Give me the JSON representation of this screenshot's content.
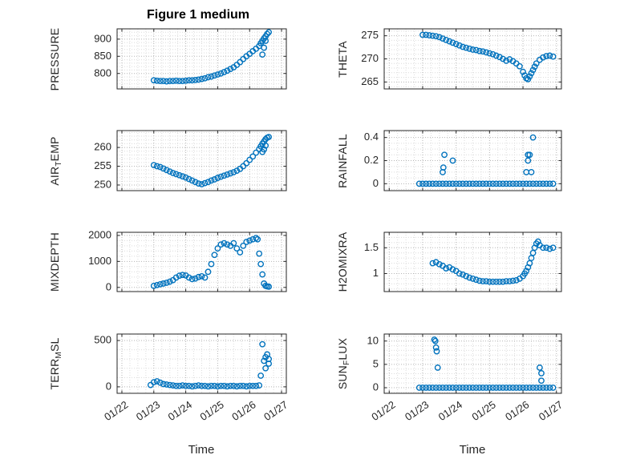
{
  "figure": {
    "title": "Figure 1 medium",
    "xlabel": "Time",
    "accent_color": "#0072BD"
  },
  "xaxis": {
    "tick_values": [
      22,
      23,
      24,
      25,
      26,
      27
    ],
    "tick_labels": [
      "01/22",
      "01/23",
      "01/24",
      "01/25",
      "01/26",
      "01/27"
    ],
    "minor_step": 0.25,
    "xlim": [
      21.85,
      27.15
    ]
  },
  "chart_data": [
    {
      "name": "pressure",
      "type": "scatter",
      "row": 0,
      "col": 0,
      "ylabel_parts": [
        {
          "t": "PRESSURE"
        }
      ],
      "ytick_values": [
        800,
        850,
        900
      ],
      "ytick_labels": [
        "800",
        "850",
        "900"
      ],
      "yminor_step": 10,
      "ylim": [
        755,
        930
      ],
      "x": [
        23.0,
        23.1,
        23.2,
        23.3,
        23.4,
        23.5,
        23.6,
        23.7,
        23.8,
        23.9,
        24.0,
        24.1,
        24.2,
        24.3,
        24.4,
        24.5,
        24.6,
        24.7,
        24.8,
        24.9,
        25.0,
        25.1,
        25.2,
        25.3,
        25.4,
        25.5,
        25.6,
        25.7,
        25.8,
        25.9,
        26.0,
        26.1,
        26.2,
        26.3,
        26.35,
        26.4,
        26.4,
        26.45,
        26.45,
        26.5,
        26.5,
        26.55,
        26.6
      ],
      "y": [
        780,
        779,
        778,
        778,
        777,
        778,
        778,
        779,
        778,
        778,
        779,
        780,
        780,
        781,
        782,
        784,
        786,
        789,
        791,
        794,
        797,
        800,
        804,
        808,
        813,
        818,
        825,
        833,
        842,
        850,
        857,
        865,
        872,
        880,
        888,
        895,
        855,
        902,
        875,
        908,
        895,
        915,
        920
      ]
    },
    {
      "name": "theta",
      "type": "scatter",
      "row": 0,
      "col": 1,
      "ylabel_parts": [
        {
          "t": "THETA"
        }
      ],
      "ytick_values": [
        265,
        270,
        275
      ],
      "ytick_labels": [
        "265",
        "270",
        "275"
      ],
      "yminor_step": 1,
      "ylim": [
        263.5,
        276.5
      ],
      "x": [
        23.0,
        23.1,
        23.2,
        23.3,
        23.4,
        23.5,
        23.6,
        23.7,
        23.8,
        23.9,
        24.0,
        24.1,
        24.2,
        24.3,
        24.4,
        24.5,
        24.6,
        24.7,
        24.8,
        24.9,
        25.0,
        25.1,
        25.2,
        25.3,
        25.4,
        25.5,
        25.6,
        25.7,
        25.8,
        25.9,
        26.0,
        26.05,
        26.1,
        26.15,
        26.2,
        26.25,
        26.3,
        26.35,
        26.4,
        26.5,
        26.6,
        26.7,
        26.8,
        26.9
      ],
      "y": [
        275.2,
        275.2,
        275.1,
        275.0,
        274.9,
        274.7,
        274.4,
        274.1,
        273.8,
        273.5,
        273.2,
        272.9,
        272.6,
        272.4,
        272.2,
        272.0,
        271.9,
        271.7,
        271.6,
        271.4,
        271.2,
        271.0,
        270.7,
        270.4,
        270.0,
        269.6,
        269.9,
        269.5,
        269.0,
        268.4,
        267.2,
        266.4,
        265.8,
        265.6,
        266.2,
        266.9,
        267.6,
        268.3,
        269.0,
        269.8,
        270.3,
        270.6,
        270.7,
        270.5
      ]
    },
    {
      "name": "air_temp",
      "type": "scatter",
      "row": 1,
      "col": 0,
      "ylabel_parts": [
        {
          "t": "AIR"
        },
        {
          "t": "T",
          "sub": true
        },
        {
          "t": "EMP"
        }
      ],
      "ytick_values": [
        250,
        255,
        260
      ],
      "ytick_labels": [
        "250",
        "255",
        "260"
      ],
      "yminor_step": 1,
      "ylim": [
        248.5,
        264.5
      ],
      "x": [
        23.0,
        23.1,
        23.2,
        23.3,
        23.4,
        23.5,
        23.6,
        23.7,
        23.8,
        23.9,
        24.0,
        24.1,
        24.2,
        24.3,
        24.4,
        24.5,
        24.6,
        24.7,
        24.8,
        24.9,
        25.0,
        25.1,
        25.2,
        25.3,
        25.4,
        25.5,
        25.6,
        25.7,
        25.8,
        25.9,
        26.0,
        26.1,
        26.2,
        26.3,
        26.35,
        26.4,
        26.4,
        26.45,
        26.45,
        26.5,
        26.5,
        26.55,
        26.6
      ],
      "y": [
        255.3,
        255.0,
        254.8,
        254.4,
        254.0,
        253.6,
        253.2,
        252.9,
        252.6,
        252.3,
        252.0,
        251.6,
        251.2,
        250.8,
        250.4,
        250.2,
        250.5,
        250.8,
        251.2,
        251.5,
        251.9,
        252.2,
        252.5,
        252.8,
        253.1,
        253.4,
        253.8,
        254.3,
        255.0,
        255.8,
        256.7,
        257.6,
        258.6,
        259.6,
        260.3,
        261.0,
        258.8,
        261.6,
        259.5,
        262.2,
        260.5,
        262.6,
        262.8
      ]
    },
    {
      "name": "rainfall",
      "type": "scatter",
      "row": 1,
      "col": 1,
      "ylabel_parts": [
        {
          "t": "RAINFALL"
        }
      ],
      "ytick_values": [
        0,
        0.2,
        0.4
      ],
      "ytick_labels": [
        "0",
        "0.2",
        "0.4"
      ],
      "yminor_step": 0.05,
      "ylim": [
        -0.06,
        0.46
      ],
      "x": [
        22.9,
        23.0,
        23.1,
        23.2,
        23.3,
        23.4,
        23.5,
        23.6,
        23.7,
        23.8,
        23.9,
        24.0,
        24.1,
        24.2,
        24.3,
        24.4,
        24.5,
        24.6,
        24.7,
        24.8,
        24.9,
        25.0,
        25.1,
        25.2,
        25.3,
        25.4,
        25.5,
        25.6,
        25.7,
        25.8,
        25.9,
        26.0,
        26.1,
        26.2,
        26.3,
        26.4,
        26.5,
        26.6,
        26.7,
        26.8,
        26.9,
        23.6,
        23.62,
        23.65,
        23.9,
        26.1,
        26.15,
        26.15,
        26.2,
        26.25,
        26.3
      ],
      "y": [
        0,
        0,
        0,
        0,
        0,
        0,
        0,
        0,
        0,
        0,
        0,
        0,
        0,
        0,
        0,
        0,
        0,
        0,
        0,
        0,
        0,
        0,
        0,
        0,
        0,
        0,
        0,
        0,
        0,
        0,
        0,
        0,
        0,
        0,
        0,
        0,
        0,
        0,
        0,
        0,
        0,
        0.1,
        0.14,
        0.25,
        0.2,
        0.1,
        0.2,
        0.25,
        0.25,
        0.1,
        0.4
      ]
    },
    {
      "name": "mixdepth",
      "type": "scatter",
      "row": 2,
      "col": 0,
      "ylabel_parts": [
        {
          "t": "MIXDEPTH"
        }
      ],
      "ytick_values": [
        0,
        1000,
        2000
      ],
      "ytick_labels": [
        "0",
        "1000",
        "2000"
      ],
      "yminor_step": 200,
      "ylim": [
        -160,
        2120
      ],
      "x": [
        23.0,
        23.1,
        23.2,
        23.3,
        23.4,
        23.5,
        23.6,
        23.7,
        23.8,
        23.9,
        24.0,
        24.1,
        24.2,
        24.3,
        24.4,
        24.5,
        24.6,
        24.7,
        24.8,
        24.9,
        25.0,
        25.1,
        25.2,
        25.3,
        25.4,
        25.5,
        25.6,
        25.7,
        25.8,
        25.9,
        26.0,
        26.1,
        26.2,
        26.25,
        26.3,
        26.35,
        26.4,
        26.45,
        26.5,
        26.55,
        26.6
      ],
      "y": [
        60,
        90,
        120,
        150,
        180,
        220,
        280,
        380,
        450,
        480,
        460,
        380,
        320,
        340,
        400,
        430,
        380,
        600,
        900,
        1250,
        1500,
        1650,
        1700,
        1650,
        1600,
        1700,
        1500,
        1350,
        1600,
        1750,
        1800,
        1850,
        1900,
        1850,
        1300,
        900,
        500,
        150,
        60,
        40,
        30
      ]
    },
    {
      "name": "h2omixra",
      "type": "scatter",
      "row": 2,
      "col": 1,
      "ylabel_parts": [
        {
          "t": "H2OMIXRA"
        }
      ],
      "ytick_values": [
        1,
        1.5
      ],
      "ytick_labels": [
        "1",
        "1.5"
      ],
      "yminor_step": 0.1,
      "ylim": [
        0.65,
        1.8
      ],
      "x": [
        23.3,
        23.4,
        23.5,
        23.6,
        23.7,
        23.8,
        23.9,
        24.0,
        24.1,
        24.2,
        24.3,
        24.4,
        24.5,
        24.6,
        24.7,
        24.8,
        24.9,
        25.0,
        25.1,
        25.2,
        25.3,
        25.4,
        25.5,
        25.6,
        25.7,
        25.8,
        25.9,
        26.0,
        26.05,
        26.1,
        26.15,
        26.2,
        26.25,
        26.3,
        26.35,
        26.4,
        26.45,
        26.5,
        26.6,
        26.7,
        26.8,
        26.9
      ],
      "y": [
        1.2,
        1.22,
        1.18,
        1.15,
        1.1,
        1.12,
        1.08,
        1.05,
        1.0,
        0.98,
        0.95,
        0.92,
        0.9,
        0.88,
        0.86,
        0.85,
        0.85,
        0.84,
        0.84,
        0.84,
        0.84,
        0.84,
        0.85,
        0.85,
        0.86,
        0.87,
        0.9,
        0.95,
        1.0,
        1.05,
        1.12,
        1.2,
        1.3,
        1.4,
        1.5,
        1.58,
        1.62,
        1.55,
        1.5,
        1.5,
        1.48,
        1.5
      ]
    },
    {
      "name": "terr_msl",
      "type": "scatter",
      "row": 3,
      "col": 0,
      "ylabel_parts": [
        {
          "t": "TERR"
        },
        {
          "t": "M",
          "sub": true
        },
        {
          "t": "SL"
        }
      ],
      "ytick_values": [
        0,
        500
      ],
      "ytick_labels": [
        "0",
        "500"
      ],
      "yminor_step": 100,
      "ylim": [
        -70,
        570
      ],
      "x": [
        22.9,
        23.0,
        23.1,
        23.2,
        23.3,
        23.4,
        23.5,
        23.6,
        23.7,
        23.8,
        23.9,
        24.0,
        24.1,
        24.2,
        24.3,
        24.4,
        24.5,
        24.6,
        24.7,
        24.8,
        24.9,
        25.0,
        25.1,
        25.2,
        25.3,
        25.4,
        25.5,
        25.6,
        25.7,
        25.8,
        25.9,
        26.0,
        26.1,
        26.2,
        26.3,
        26.35,
        26.4,
        26.45,
        26.5,
        26.5,
        26.55,
        26.6,
        26.6
      ],
      "y": [
        20,
        50,
        60,
        45,
        30,
        25,
        20,
        15,
        10,
        10,
        15,
        10,
        10,
        5,
        10,
        15,
        10,
        10,
        5,
        10,
        10,
        5,
        10,
        10,
        5,
        10,
        10,
        5,
        10,
        10,
        5,
        10,
        10,
        10,
        15,
        120,
        460,
        280,
        320,
        200,
        350,
        300,
        250
      ]
    },
    {
      "name": "sun_flux",
      "type": "scatter",
      "row": 3,
      "col": 1,
      "ylabel_parts": [
        {
          "t": "SUN"
        },
        {
          "t": "F",
          "sub": true
        },
        {
          "t": "LUX"
        }
      ],
      "ytick_values": [
        0,
        5,
        10
      ],
      "ytick_labels": [
        "0",
        "5",
        "10"
      ],
      "yminor_step": 1,
      "ylim": [
        -1.2,
        11.5
      ],
      "x": [
        22.9,
        23.0,
        23.1,
        23.2,
        23.3,
        23.4,
        23.5,
        23.6,
        23.7,
        23.8,
        23.9,
        24.0,
        24.1,
        24.2,
        24.3,
        24.4,
        24.5,
        24.6,
        24.7,
        24.8,
        24.9,
        25.0,
        25.1,
        25.2,
        25.3,
        25.4,
        25.5,
        25.6,
        25.7,
        25.8,
        25.9,
        26.0,
        26.1,
        26.2,
        26.3,
        26.4,
        26.5,
        26.6,
        26.7,
        26.8,
        26.9,
        23.35,
        23.38,
        23.4,
        23.42,
        23.45,
        26.5,
        26.55,
        26.55
      ],
      "y": [
        0,
        0,
        0,
        0,
        0,
        0,
        0,
        0,
        0,
        0,
        0,
        0,
        0,
        0,
        0,
        0,
        0,
        0,
        0,
        0,
        0,
        0,
        0,
        0,
        0,
        0,
        0,
        0,
        0,
        0,
        0,
        0,
        0,
        0,
        0,
        0,
        0,
        0,
        0,
        0,
        0,
        10.3,
        10.0,
        8.6,
        7.8,
        4.3,
        4.3,
        3.1,
        1.5
      ]
    }
  ]
}
